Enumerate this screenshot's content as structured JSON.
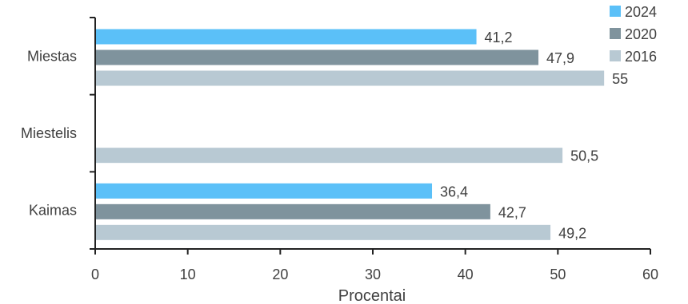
{
  "chart_data": {
    "type": "bar",
    "orientation": "horizontal",
    "categories": [
      "Miestas",
      "Miestelis",
      "Kaimas"
    ],
    "series": [
      {
        "name": "2024",
        "color": "#5BC0F8",
        "values": [
          41.2,
          null,
          36.4
        ],
        "labels": [
          "41,2",
          "",
          "36,4"
        ]
      },
      {
        "name": "2020",
        "color": "#7F939D",
        "values": [
          47.9,
          null,
          42.7
        ],
        "labels": [
          "47,9",
          "",
          "42,7"
        ]
      },
      {
        "name": "2016",
        "color": "#B8C9D3",
        "values": [
          55,
          50.5,
          49.2
        ],
        "labels": [
          "55",
          "50,5",
          "49,2"
        ]
      }
    ],
    "xlabel": "Procentai",
    "xlim": [
      0,
      60
    ],
    "xticks": [
      0,
      10,
      20,
      30,
      40,
      50,
      60
    ],
    "grid": false,
    "legend_position": "top-right"
  }
}
